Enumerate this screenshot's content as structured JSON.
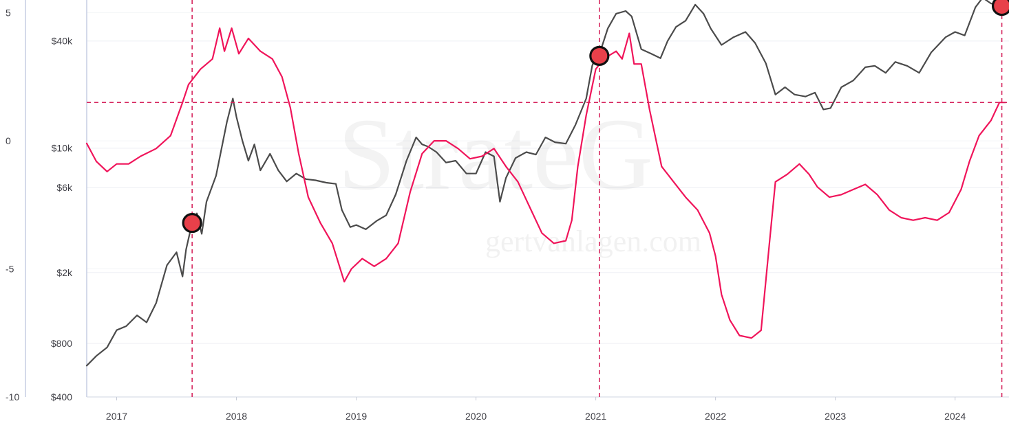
{
  "watermark": {
    "brand": "StrateG",
    "site": "gertvanlagen.com"
  },
  "chart_data": {
    "type": "line",
    "title": "",
    "xlabel": "",
    "x_ticks": [
      "2017",
      "2018",
      "2019",
      "2020",
      "2021",
      "2022",
      "2023",
      "2024"
    ],
    "x_range": [
      2016.75,
      2024.45
    ],
    "left_axis": {
      "ticks": [
        5,
        0,
        -5,
        -10
      ],
      "tick_labels": [
        "5",
        "0",
        "-5",
        "-10"
      ],
      "range": [
        -10,
        5.5
      ]
    },
    "right_axis": {
      "scale": "log",
      "ticks": [
        40000,
        10000,
        6000,
        2000,
        800,
        400
      ],
      "tick_labels": [
        "$40k",
        "$10k",
        "$6k",
        "$2k",
        "$800",
        "$400"
      ],
      "range": [
        400,
        68000
      ]
    },
    "grid": true,
    "colors": {
      "price": "#4b4b4b",
      "oscillator": "#f0145a",
      "markers": "#e8404a",
      "reference_lines": "#d6265e"
    },
    "series": [
      {
        "role": "price",
        "axis": "right",
        "color": "#4b4b4b",
        "points": [
          [
            2016.75,
            600
          ],
          [
            2016.83,
            680
          ],
          [
            2016.92,
            760
          ],
          [
            2017.0,
            950
          ],
          [
            2017.08,
            1000
          ],
          [
            2017.17,
            1150
          ],
          [
            2017.25,
            1050
          ],
          [
            2017.33,
            1350
          ],
          [
            2017.42,
            2200
          ],
          [
            2017.5,
            2600
          ],
          [
            2017.55,
            1900
          ],
          [
            2017.58,
            2700
          ],
          [
            2017.63,
            3800
          ],
          [
            2017.67,
            4300
          ],
          [
            2017.71,
            3300
          ],
          [
            2017.75,
            5000
          ],
          [
            2017.83,
            7000
          ],
          [
            2017.92,
            14000
          ],
          [
            2017.97,
            19000
          ],
          [
            2018.0,
            15000
          ],
          [
            2018.05,
            11000
          ],
          [
            2018.1,
            8500
          ],
          [
            2018.15,
            10500
          ],
          [
            2018.2,
            7500
          ],
          [
            2018.28,
            9300
          ],
          [
            2018.35,
            7500
          ],
          [
            2018.42,
            6500
          ],
          [
            2018.5,
            7200
          ],
          [
            2018.58,
            6700
          ],
          [
            2018.66,
            6600
          ],
          [
            2018.75,
            6400
          ],
          [
            2018.83,
            6300
          ],
          [
            2018.88,
            4500
          ],
          [
            2018.95,
            3600
          ],
          [
            2019.0,
            3700
          ],
          [
            2019.08,
            3500
          ],
          [
            2019.17,
            3900
          ],
          [
            2019.25,
            4200
          ],
          [
            2019.33,
            5500
          ],
          [
            2019.42,
            8500
          ],
          [
            2019.5,
            11500
          ],
          [
            2019.55,
            10500
          ],
          [
            2019.6,
            10200
          ],
          [
            2019.67,
            9500
          ],
          [
            2019.75,
            8300
          ],
          [
            2019.83,
            8500
          ],
          [
            2019.92,
            7200
          ],
          [
            2020.0,
            7200
          ],
          [
            2020.08,
            9500
          ],
          [
            2020.15,
            9000
          ],
          [
            2020.2,
            5000
          ],
          [
            2020.25,
            6800
          ],
          [
            2020.33,
            8800
          ],
          [
            2020.42,
            9500
          ],
          [
            2020.5,
            9200
          ],
          [
            2020.58,
            11500
          ],
          [
            2020.66,
            10800
          ],
          [
            2020.75,
            10600
          ],
          [
            2020.83,
            13500
          ],
          [
            2020.92,
            19000
          ],
          [
            2020.97,
            29000
          ],
          [
            2021.0,
            33000
          ],
          [
            2021.05,
            37000
          ],
          [
            2021.1,
            47000
          ],
          [
            2021.17,
            57000
          ],
          [
            2021.25,
            59000
          ],
          [
            2021.3,
            55000
          ],
          [
            2021.38,
            36000
          ],
          [
            2021.46,
            34000
          ],
          [
            2021.54,
            32000
          ],
          [
            2021.6,
            40000
          ],
          [
            2021.67,
            48000
          ],
          [
            2021.75,
            52000
          ],
          [
            2021.83,
            64000
          ],
          [
            2021.9,
            57000
          ],
          [
            2021.96,
            47000
          ],
          [
            2022.05,
            38000
          ],
          [
            2022.15,
            42000
          ],
          [
            2022.25,
            45000
          ],
          [
            2022.33,
            39000
          ],
          [
            2022.42,
            30000
          ],
          [
            2022.5,
            20000
          ],
          [
            2022.58,
            22000
          ],
          [
            2022.66,
            20000
          ],
          [
            2022.75,
            19500
          ],
          [
            2022.83,
            20500
          ],
          [
            2022.9,
            16500
          ],
          [
            2022.96,
            16800
          ],
          [
            2023.05,
            22000
          ],
          [
            2023.15,
            24000
          ],
          [
            2023.25,
            28500
          ],
          [
            2023.33,
            29000
          ],
          [
            2023.42,
            26500
          ],
          [
            2023.5,
            30500
          ],
          [
            2023.6,
            29000
          ],
          [
            2023.7,
            26500
          ],
          [
            2023.8,
            34500
          ],
          [
            2023.92,
            42000
          ],
          [
            2024.0,
            45000
          ],
          [
            2024.08,
            43000
          ],
          [
            2024.17,
            62000
          ],
          [
            2024.23,
            70000
          ],
          [
            2024.3,
            65000
          ],
          [
            2024.38,
            64000
          ],
          [
            2024.42,
            63000
          ]
        ]
      },
      {
        "role": "oscillator",
        "axis": "left",
        "color": "#f0145a",
        "points": [
          [
            2016.75,
            -0.1
          ],
          [
            2016.83,
            -0.8
          ],
          [
            2016.92,
            -1.2
          ],
          [
            2017.0,
            -0.9
          ],
          [
            2017.1,
            -0.9
          ],
          [
            2017.2,
            -0.6
          ],
          [
            2017.33,
            -0.3
          ],
          [
            2017.45,
            0.2
          ],
          [
            2017.55,
            1.5
          ],
          [
            2017.6,
            2.2
          ],
          [
            2017.7,
            2.8
          ],
          [
            2017.8,
            3.2
          ],
          [
            2017.86,
            4.4
          ],
          [
            2017.9,
            3.5
          ],
          [
            2017.96,
            4.4
          ],
          [
            2018.02,
            3.4
          ],
          [
            2018.1,
            4.0
          ],
          [
            2018.2,
            3.5
          ],
          [
            2018.3,
            3.2
          ],
          [
            2018.38,
            2.5
          ],
          [
            2018.45,
            1.3
          ],
          [
            2018.52,
            -0.5
          ],
          [
            2018.6,
            -2.2
          ],
          [
            2018.7,
            -3.2
          ],
          [
            2018.8,
            -4.0
          ],
          [
            2018.9,
            -5.5
          ],
          [
            2018.96,
            -5.0
          ],
          [
            2019.05,
            -4.6
          ],
          [
            2019.15,
            -4.9
          ],
          [
            2019.25,
            -4.6
          ],
          [
            2019.35,
            -4.0
          ],
          [
            2019.45,
            -2.0
          ],
          [
            2019.55,
            -0.5
          ],
          [
            2019.65,
            0.0
          ],
          [
            2019.75,
            0.0
          ],
          [
            2019.85,
            -0.3
          ],
          [
            2019.95,
            -0.7
          ],
          [
            2020.05,
            -0.6
          ],
          [
            2020.15,
            -0.3
          ],
          [
            2020.25,
            -1.0
          ],
          [
            2020.35,
            -1.6
          ],
          [
            2020.45,
            -2.6
          ],
          [
            2020.55,
            -3.6
          ],
          [
            2020.65,
            -4.0
          ],
          [
            2020.75,
            -3.9
          ],
          [
            2020.8,
            -3.1
          ],
          [
            2020.85,
            -1.0
          ],
          [
            2020.92,
            1.0
          ],
          [
            2021.0,
            2.8
          ],
          [
            2021.05,
            3.1
          ],
          [
            2021.1,
            3.3
          ],
          [
            2021.17,
            3.5
          ],
          [
            2021.22,
            3.2
          ],
          [
            2021.28,
            4.2
          ],
          [
            2021.32,
            3.0
          ],
          [
            2021.38,
            3.0
          ],
          [
            2021.45,
            1.2
          ],
          [
            2021.55,
            -1.0
          ],
          [
            2021.65,
            -1.6
          ],
          [
            2021.75,
            -2.2
          ],
          [
            2021.85,
            -2.7
          ],
          [
            2021.95,
            -3.6
          ],
          [
            2022.0,
            -4.5
          ],
          [
            2022.05,
            -6.0
          ],
          [
            2022.12,
            -7.0
          ],
          [
            2022.2,
            -7.6
          ],
          [
            2022.3,
            -7.7
          ],
          [
            2022.38,
            -7.4
          ],
          [
            2022.45,
            -4.0
          ],
          [
            2022.5,
            -1.6
          ],
          [
            2022.6,
            -1.3
          ],
          [
            2022.7,
            -0.9
          ],
          [
            2022.78,
            -1.3
          ],
          [
            2022.85,
            -1.8
          ],
          [
            2022.95,
            -2.2
          ],
          [
            2023.05,
            -2.1
          ],
          [
            2023.15,
            -1.9
          ],
          [
            2023.25,
            -1.7
          ],
          [
            2023.35,
            -2.1
          ],
          [
            2023.45,
            -2.7
          ],
          [
            2023.55,
            -3.0
          ],
          [
            2023.65,
            -3.1
          ],
          [
            2023.75,
            -3.0
          ],
          [
            2023.85,
            -3.1
          ],
          [
            2023.95,
            -2.8
          ],
          [
            2024.05,
            -1.9
          ],
          [
            2024.12,
            -0.8
          ],
          [
            2024.2,
            0.2
          ],
          [
            2024.3,
            0.8
          ],
          [
            2024.37,
            1.5
          ],
          [
            2024.42,
            1.5
          ]
        ]
      }
    ],
    "reference_lines": {
      "vertical_x": [
        2017.63,
        2021.03,
        2024.39
      ],
      "horizontal_left": 1.5
    },
    "markers": [
      {
        "x": 2017.63,
        "price": 3800
      },
      {
        "x": 2021.03,
        "price": 33000
      },
      {
        "x": 2024.39,
        "price": 63000
      }
    ]
  }
}
